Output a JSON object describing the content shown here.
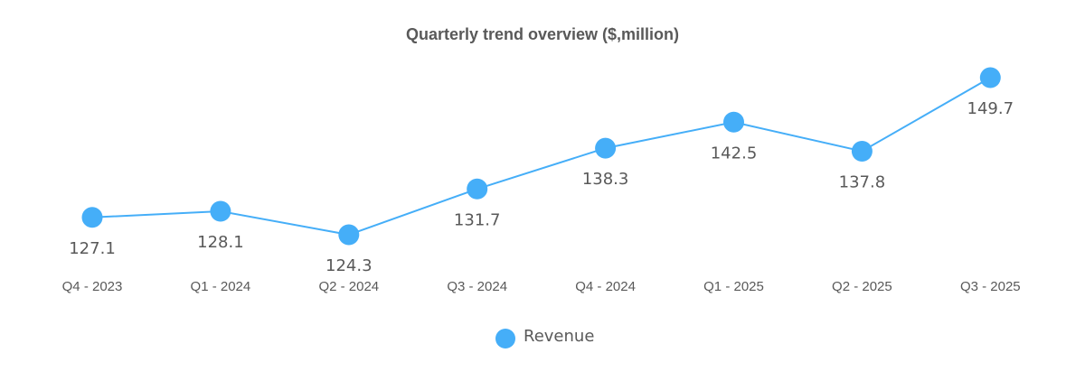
{
  "chart_data": {
    "type": "line",
    "title": "Quarterly trend overview ($,million)",
    "categories": [
      "Q4 - 2023",
      "Q1 - 2024",
      "Q2 - 2024",
      "Q3 - 2024",
      "Q4 - 2024",
      "Q1 - 2025",
      "Q2 - 2025",
      "Q3 - 2025"
    ],
    "series": [
      {
        "name": "Revenue",
        "values": [
          127.1,
          128.1,
          124.3,
          131.7,
          138.3,
          142.5,
          137.8,
          149.7
        ],
        "labels": [
          "127.1",
          "128.1",
          "124.3",
          "131.7",
          "138.3",
          "142.5",
          "137.8",
          "149.7"
        ]
      }
    ],
    "colors": {
      "series": "#45AEF8",
      "text": "#595959"
    },
    "xlabel": "",
    "ylabel": "",
    "grid": false,
    "legend_position": "bottom"
  }
}
